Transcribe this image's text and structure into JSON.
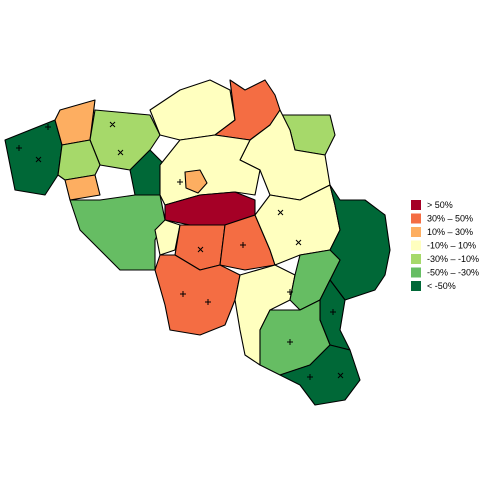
{
  "legend": {
    "items": [
      {
        "label": "> 50%",
        "color": "#a50026"
      },
      {
        "label": "30% – 50%",
        "color": "#f46d43"
      },
      {
        "label": "10% – 30%",
        "color": "#fdae61"
      },
      {
        "label": "-10% – 10%",
        "color": "#ffffbf"
      },
      {
        "label": "-30% – -10%",
        "color": "#a6d96a"
      },
      {
        "label": "-50% – -30%",
        "color": "#66bd63"
      },
      {
        "label": "< -50%",
        "color": "#006837"
      }
    ]
  }
}
